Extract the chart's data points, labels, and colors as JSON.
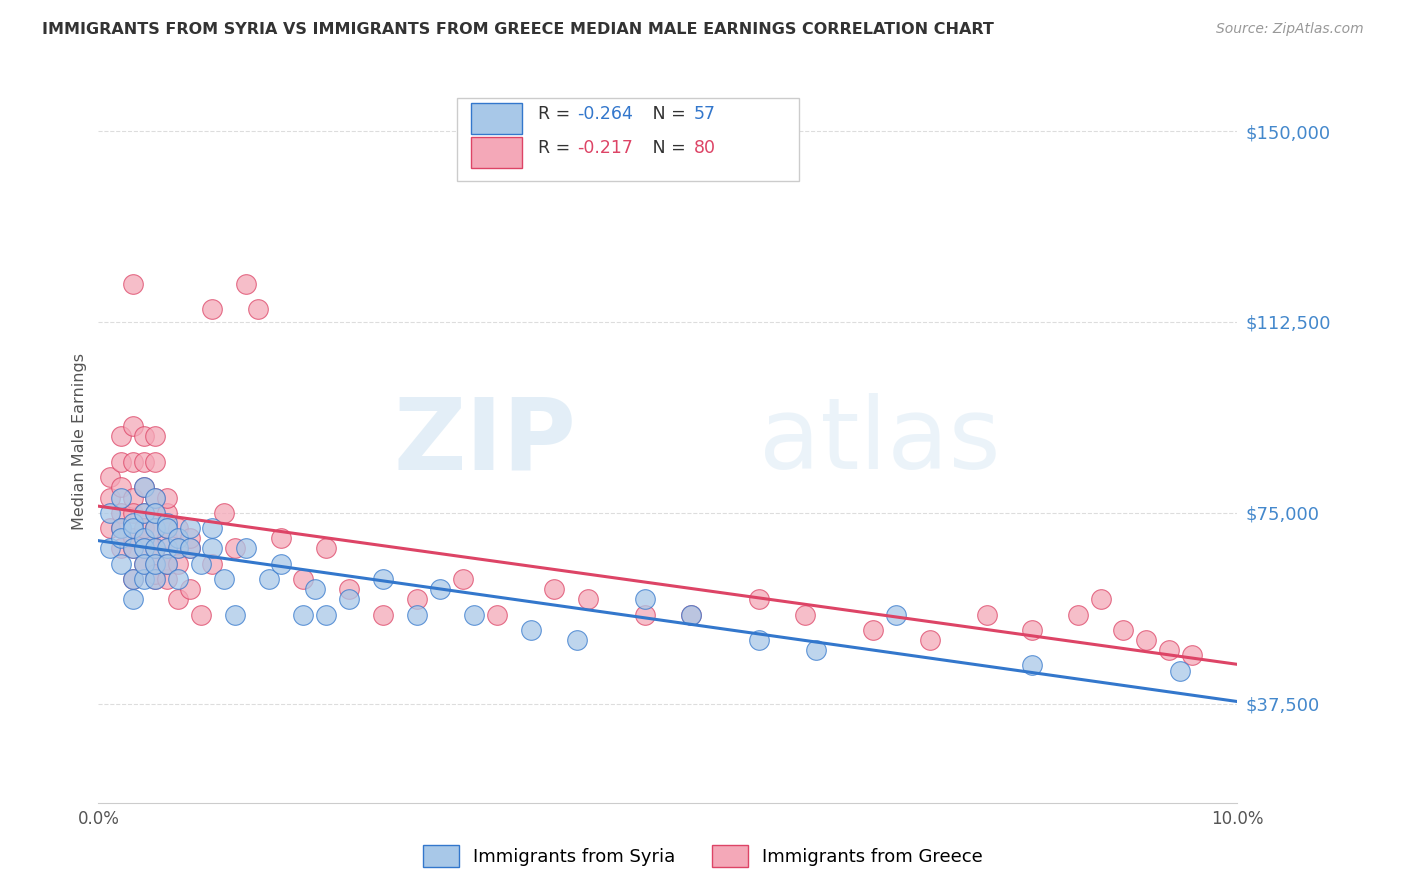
{
  "title": "IMMIGRANTS FROM SYRIA VS IMMIGRANTS FROM GREECE MEDIAN MALE EARNINGS CORRELATION CHART",
  "source": "Source: ZipAtlas.com",
  "ylabel": "Median Male Earnings",
  "xlim": [
    0.0,
    0.1
  ],
  "ylim": [
    18000,
    160000
  ],
  "yticks": [
    37500,
    75000,
    112500,
    150000
  ],
  "ytick_labels": [
    "$37,500",
    "$75,000",
    "$112,500",
    "$150,000"
  ],
  "xticks": [
    0.0,
    0.02,
    0.04,
    0.06,
    0.08,
    0.1
  ],
  "xtick_labels": [
    "0.0%",
    "",
    "",
    "",
    "",
    "10.0%"
  ],
  "syria_color": "#a8c8e8",
  "greece_color": "#f4a8b8",
  "syria_line_color": "#3377cc",
  "greece_line_color": "#dd4466",
  "syria_R": -0.264,
  "syria_N": 57,
  "greece_R": -0.217,
  "greece_N": 80,
  "watermark_zip": "ZIP",
  "watermark_atlas": "atlas",
  "background_color": "#ffffff",
  "grid_color": "#dddddd",
  "axis_color": "#4488cc",
  "title_color": "#333333",
  "syria_x": [
    0.001,
    0.001,
    0.002,
    0.002,
    0.002,
    0.002,
    0.003,
    0.003,
    0.003,
    0.003,
    0.003,
    0.004,
    0.004,
    0.004,
    0.004,
    0.004,
    0.004,
    0.005,
    0.005,
    0.005,
    0.005,
    0.005,
    0.005,
    0.006,
    0.006,
    0.006,
    0.006,
    0.007,
    0.007,
    0.007,
    0.008,
    0.008,
    0.009,
    0.01,
    0.01,
    0.011,
    0.012,
    0.013,
    0.015,
    0.016,
    0.018,
    0.019,
    0.02,
    0.022,
    0.025,
    0.028,
    0.03,
    0.033,
    0.038,
    0.042,
    0.048,
    0.052,
    0.058,
    0.063,
    0.07,
    0.082,
    0.095
  ],
  "syria_y": [
    68000,
    75000,
    72000,
    65000,
    78000,
    70000,
    73000,
    68000,
    72000,
    62000,
    58000,
    80000,
    75000,
    70000,
    68000,
    62000,
    65000,
    78000,
    72000,
    68000,
    75000,
    62000,
    65000,
    73000,
    68000,
    72000,
    65000,
    70000,
    68000,
    62000,
    72000,
    68000,
    65000,
    72000,
    68000,
    62000,
    55000,
    68000,
    62000,
    65000,
    55000,
    60000,
    55000,
    58000,
    62000,
    55000,
    60000,
    55000,
    52000,
    50000,
    58000,
    55000,
    50000,
    48000,
    55000,
    45000,
    44000
  ],
  "greece_x": [
    0.001,
    0.001,
    0.001,
    0.002,
    0.002,
    0.002,
    0.002,
    0.002,
    0.002,
    0.003,
    0.003,
    0.003,
    0.003,
    0.003,
    0.003,
    0.003,
    0.003,
    0.004,
    0.004,
    0.004,
    0.004,
    0.004,
    0.004,
    0.004,
    0.004,
    0.005,
    0.005,
    0.005,
    0.005,
    0.005,
    0.005,
    0.005,
    0.005,
    0.005,
    0.005,
    0.006,
    0.006,
    0.006,
    0.006,
    0.006,
    0.006,
    0.006,
    0.007,
    0.007,
    0.007,
    0.007,
    0.008,
    0.008,
    0.008,
    0.009,
    0.01,
    0.01,
    0.011,
    0.012,
    0.013,
    0.014,
    0.016,
    0.018,
    0.02,
    0.022,
    0.025,
    0.028,
    0.032,
    0.035,
    0.04,
    0.043,
    0.048,
    0.052,
    0.058,
    0.062,
    0.068,
    0.073,
    0.078,
    0.082,
    0.086,
    0.088,
    0.09,
    0.092,
    0.094,
    0.096
  ],
  "greece_y": [
    78000,
    82000,
    72000,
    80000,
    75000,
    68000,
    85000,
    90000,
    72000,
    85000,
    78000,
    120000,
    92000,
    75000,
    70000,
    68000,
    62000,
    80000,
    90000,
    75000,
    70000,
    85000,
    65000,
    72000,
    68000,
    78000,
    85000,
    72000,
    68000,
    65000,
    62000,
    90000,
    75000,
    68000,
    63000,
    75000,
    70000,
    65000,
    72000,
    62000,
    78000,
    65000,
    68000,
    65000,
    72000,
    58000,
    68000,
    60000,
    70000,
    55000,
    65000,
    115000,
    75000,
    68000,
    120000,
    115000,
    70000,
    62000,
    68000,
    60000,
    55000,
    58000,
    62000,
    55000,
    60000,
    58000,
    55000,
    55000,
    58000,
    55000,
    52000,
    50000,
    55000,
    52000,
    55000,
    58000,
    52000,
    50000,
    48000,
    47000
  ]
}
